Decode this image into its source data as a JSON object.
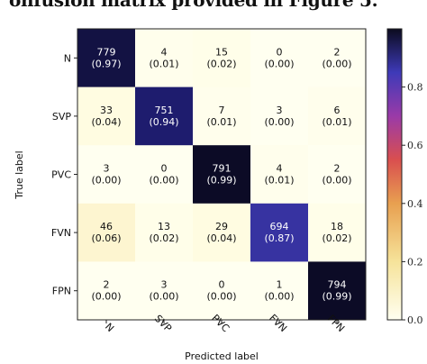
{
  "caption": "onfusion matrix provided in Figure 5.",
  "chart_data": {
    "type": "heatmap",
    "title": "",
    "xlabel": "Predicted label",
    "ylabel": "True label",
    "x_categories": [
      "N",
      "SVP",
      "PVC",
      "FVN",
      "FPN"
    ],
    "y_categories": [
      "N",
      "SVP",
      "PVC",
      "FVN",
      "FPN"
    ],
    "counts": [
      [
        779,
        4,
        15,
        0,
        2
      ],
      [
        33,
        751,
        7,
        3,
        6
      ],
      [
        3,
        0,
        791,
        4,
        2
      ],
      [
        46,
        13,
        29,
        694,
        18
      ],
      [
        2,
        3,
        0,
        1,
        794
      ]
    ],
    "fraction_labels": [
      [
        "(0.97)",
        "(0.01)",
        "(0.02)",
        "(0.00)",
        "(0.00)"
      ],
      [
        "(0.04)",
        "(0.94)",
        "(0.01)",
        "(0.00)",
        "(0.01)"
      ],
      [
        "(0.00)",
        "(0.00)",
        "(0.99)",
        "(0.01)",
        "(0.00)"
      ],
      [
        "(0.06)",
        "(0.02)",
        "(0.04)",
        "(0.87)",
        "(0.02)"
      ],
      [
        "(0.00)",
        "(0.00)",
        "(0.00)",
        "(0.00)",
        "(0.99)"
      ]
    ],
    "fractions": [
      [
        0.97,
        0.01,
        0.02,
        0.0,
        0.0
      ],
      [
        0.04,
        0.94,
        0.01,
        0.0,
        0.01
      ],
      [
        0.0,
        0.0,
        0.99,
        0.01,
        0.0
      ],
      [
        0.06,
        0.02,
        0.04,
        0.87,
        0.02
      ],
      [
        0.0,
        0.0,
        0.0,
        0.0,
        0.99
      ]
    ],
    "colorbar": {
      "range": [
        0,
        1
      ],
      "ticks": [
        0.0,
        0.2,
        0.4,
        0.6,
        0.8
      ],
      "tick_labels": [
        "0.0",
        "0.2",
        "0.4",
        "0.6",
        "0.8"
      ],
      "colormap": "CMRmap_r"
    },
    "grid": false
  }
}
